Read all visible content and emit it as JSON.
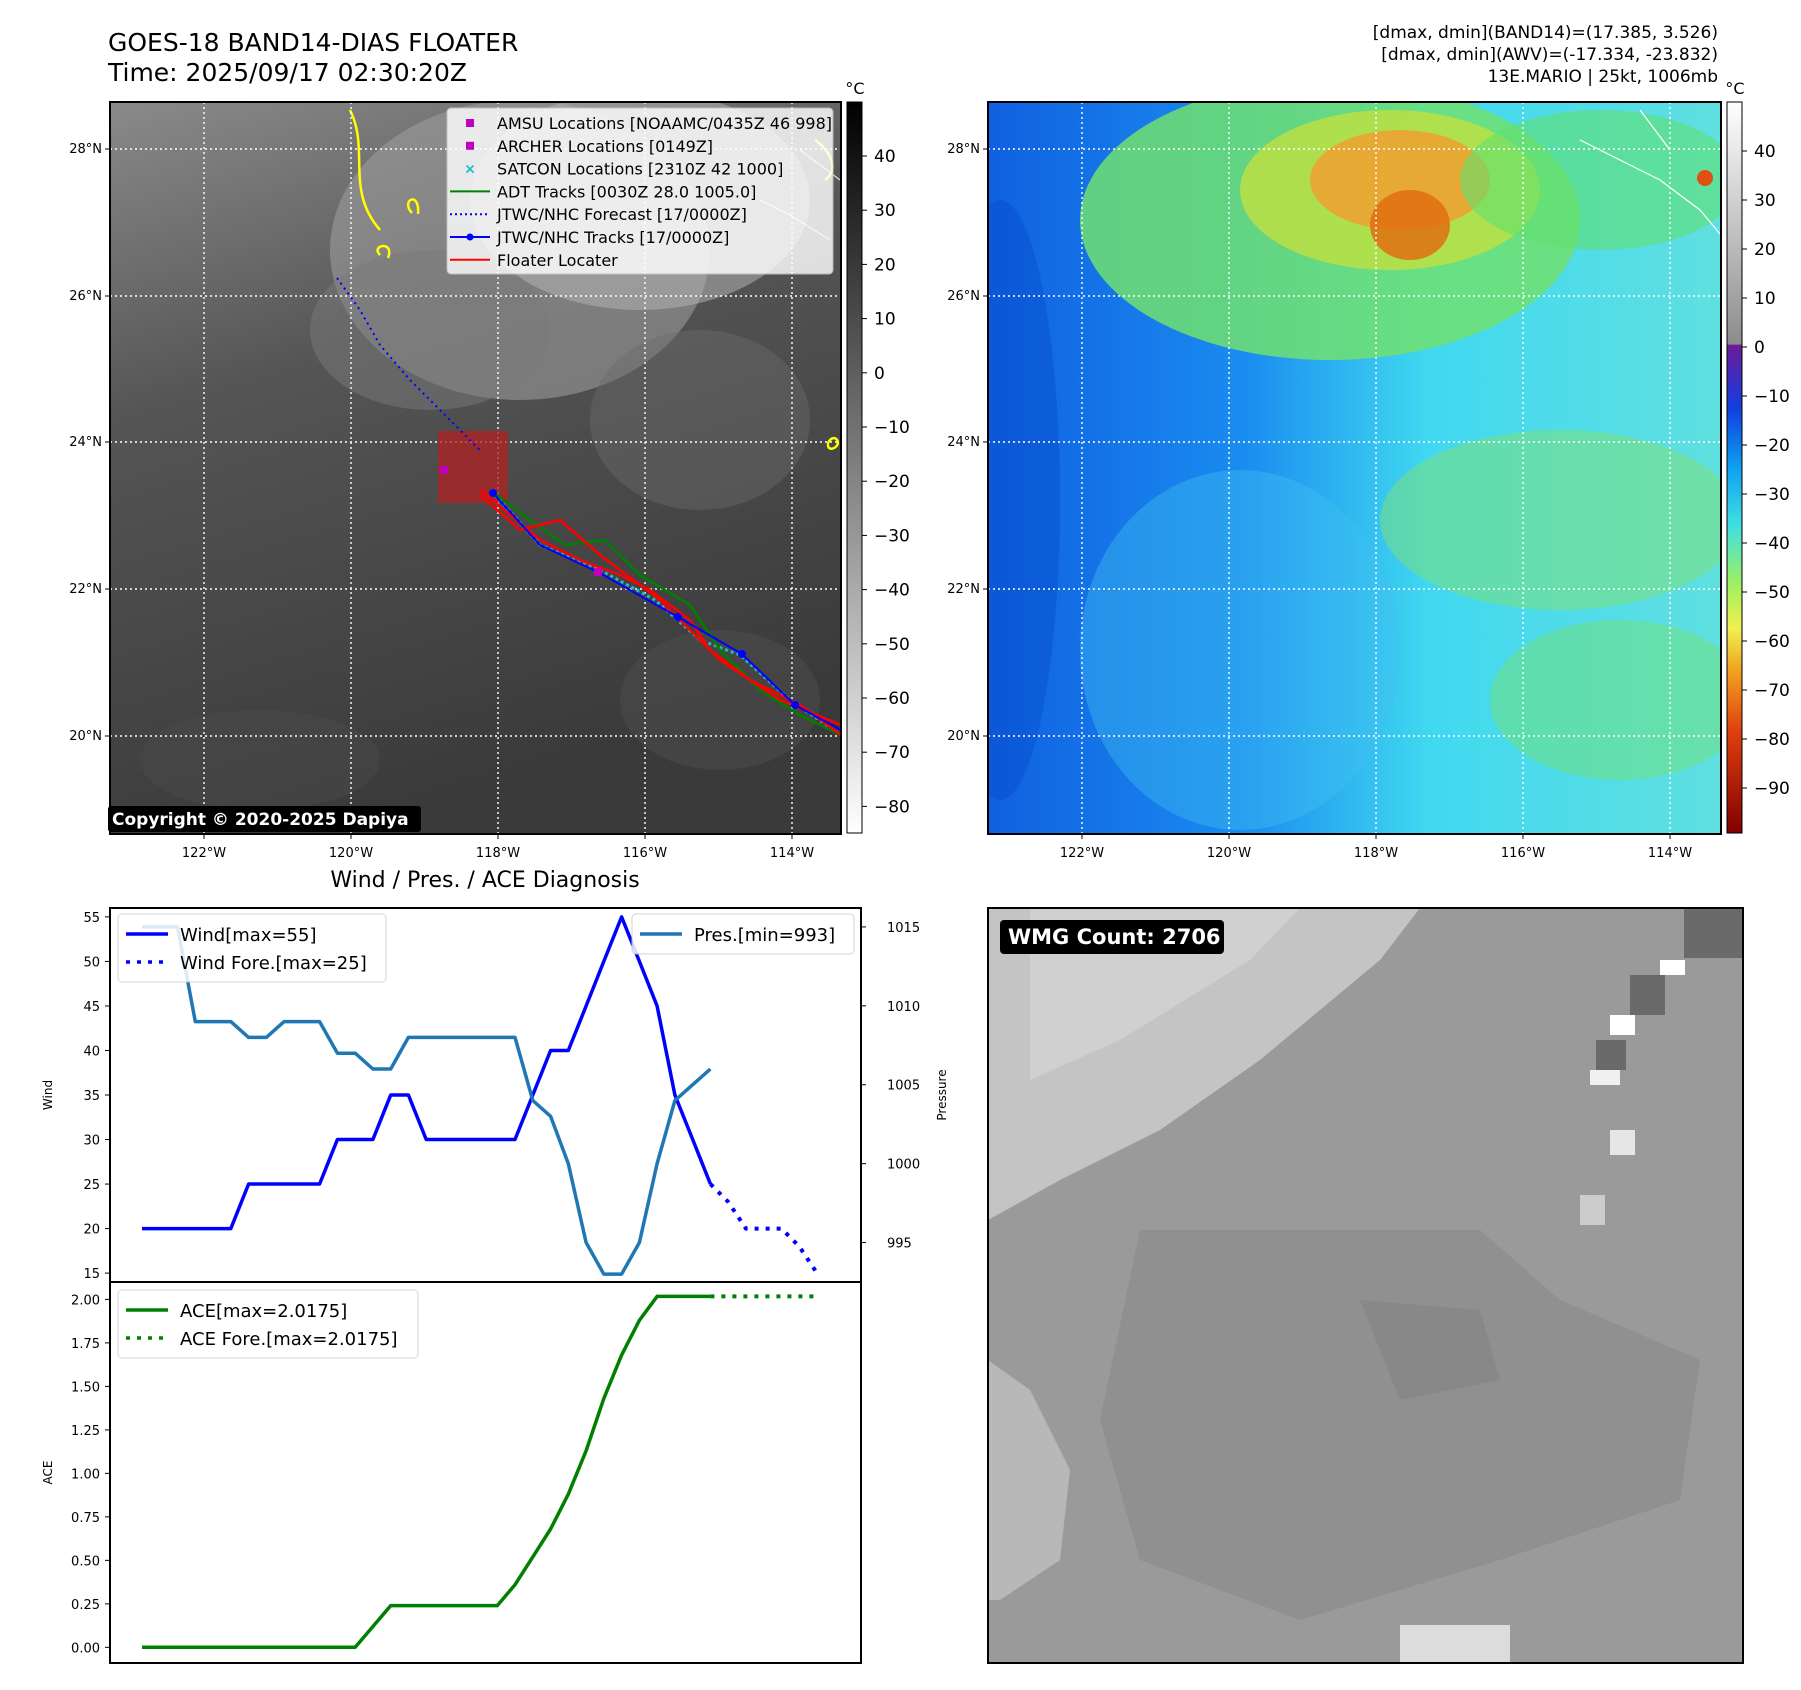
{
  "header": {
    "title_line1": "GOES-18 BAND14-DIAS FLOATER",
    "title_line2": "Time: 2025/09/17 02:30:20Z",
    "right_line1": "[dmax, dmin](BAND14)=(17.385, 3.526)",
    "right_line2": "[dmax, dmin](AWV)=(-17.334, -23.832)",
    "right_line3": "13E.MARIO | 25kt, 1006mb"
  },
  "copyright": "Copyright © 2020-2025 Dapiya",
  "wmg_label": "WMG Count: 2706",
  "maps": {
    "lon_ticks": [
      "122°W",
      "120°W",
      "118°W",
      "116°W",
      "114°W"
    ],
    "lat_ticks": [
      "28°N",
      "26°N",
      "24°N",
      "22°N",
      "20°N"
    ],
    "colorbar_unit": "°C",
    "ir_colorbar_ticks": [
      "40",
      "30",
      "20",
      "10",
      "0",
      "−10",
      "−20",
      "−30",
      "−40",
      "−50",
      "−60",
      "−70",
      "−80"
    ],
    "wv_colorbar_ticks": [
      "40",
      "30",
      "20",
      "10",
      "0",
      "−10",
      "−20",
      "−30",
      "−40",
      "−50",
      "−60",
      "−70",
      "−80",
      "−90"
    ],
    "legend": [
      {
        "label": "AMSU Locations [NOAAMC/0435Z 46 998]",
        "color": "#bf00bf",
        "kind": "square"
      },
      {
        "label": "ARCHER Locations [0149Z]",
        "color": "#bf00bf",
        "kind": "square"
      },
      {
        "label": "SATCON Locations [2310Z 42 1000]",
        "color": "#17becf",
        "kind": "x"
      },
      {
        "label": "ADT Tracks [0030Z 28.0 1005.0]",
        "color": "#008000",
        "kind": "line"
      },
      {
        "label": "JTWC/NHC Forecast [17/0000Z]",
        "color": "#0000ff",
        "kind": "dotted"
      },
      {
        "label": "JTWC/NHC Tracks [17/0000Z]",
        "color": "#0000ff",
        "kind": "line-dot"
      },
      {
        "label": "Floater Locater",
        "color": "#ff0000",
        "kind": "line"
      }
    ]
  },
  "chart_data": [
    {
      "type": "line",
      "title": "Wind / Pres. / ACE Diagnosis",
      "ylabel": "Wind",
      "ylabel_right": "Pressure",
      "ylim": [
        14,
        56
      ],
      "ylim_right": [
        992.5,
        1016.2
      ],
      "yticks": [
        15,
        20,
        25,
        30,
        35,
        40,
        45,
        50,
        55
      ],
      "yticks_right": [
        995,
        1000,
        1005,
        1010,
        1015
      ],
      "x_forecast_start": 32,
      "series": [
        {
          "name": "Wind[max=55]",
          "color": "#0000ff",
          "style": "solid",
          "x": [
            0,
            1,
            2,
            3,
            4,
            5,
            6,
            7,
            8,
            9,
            10,
            11,
            12,
            13,
            14,
            15,
            16,
            17,
            18,
            19,
            20,
            21,
            22,
            23,
            24,
            25,
            26,
            27,
            28,
            29,
            30,
            31,
            32
          ],
          "values": [
            20,
            20,
            20,
            20,
            20,
            20,
            25,
            25,
            25,
            25,
            25,
            30,
            30,
            30,
            35,
            35,
            30,
            30,
            30,
            30,
            30,
            30,
            35,
            40,
            40,
            45,
            50,
            55,
            50,
            45,
            35,
            30,
            25
          ]
        },
        {
          "name": "Wind Fore.[max=25]",
          "color": "#0000ff",
          "style": "dotted",
          "x": [
            32,
            33,
            34,
            35,
            36,
            37,
            38
          ],
          "values": [
            25,
            23,
            20,
            20,
            20,
            18,
            15
          ]
        },
        {
          "name": "Pres.[min=993]",
          "color": "#1f77b4",
          "style": "solid",
          "axis": "right",
          "x": [
            0,
            1,
            2,
            3,
            4,
            5,
            6,
            7,
            8,
            9,
            10,
            11,
            12,
            13,
            14,
            15,
            16,
            17,
            18,
            19,
            20,
            21,
            22,
            23,
            24,
            25,
            26,
            27,
            28,
            29,
            30,
            31,
            32
          ],
          "values": [
            1015,
            1015,
            1015,
            1009,
            1009,
            1009,
            1008,
            1008,
            1009,
            1009,
            1009,
            1007,
            1007,
            1006,
            1006,
            1008,
            1008,
            1008,
            1008,
            1008,
            1008,
            1008,
            1004,
            1003,
            1000,
            995,
            993,
            993,
            995,
            1000,
            1004,
            1005,
            1006
          ]
        }
      ]
    },
    {
      "type": "line",
      "ylabel": "ACE",
      "ylim": [
        -0.09,
        2.1
      ],
      "yticks": [
        "0.00",
        "0.25",
        "0.50",
        "0.75",
        "1.00",
        "1.25",
        "1.50",
        "1.75",
        "2.00"
      ],
      "series": [
        {
          "name": "ACE[max=2.0175]",
          "color": "#008000",
          "style": "solid",
          "x": [
            0,
            1,
            2,
            3,
            4,
            5,
            6,
            7,
            8,
            9,
            10,
            11,
            12,
            13,
            14,
            15,
            16,
            17,
            18,
            19,
            20,
            21,
            22,
            23,
            24,
            25,
            26,
            27,
            28,
            29,
            30,
            31,
            32
          ],
          "values": [
            0,
            0,
            0,
            0,
            0,
            0,
            0,
            0,
            0,
            0,
            0,
            0,
            0,
            0.12,
            0.24,
            0.24,
            0.24,
            0.24,
            0.24,
            0.24,
            0.24,
            0.36,
            0.52,
            0.68,
            0.88,
            1.13,
            1.43,
            1.68,
            1.88,
            2.0175,
            2.0175,
            2.0175,
            2.0175
          ]
        },
        {
          "name": "ACE Fore.[max=2.0175]",
          "color": "#008000",
          "style": "dotted",
          "x": [
            32,
            38
          ],
          "values": [
            2.0175,
            2.0175
          ]
        }
      ]
    }
  ]
}
